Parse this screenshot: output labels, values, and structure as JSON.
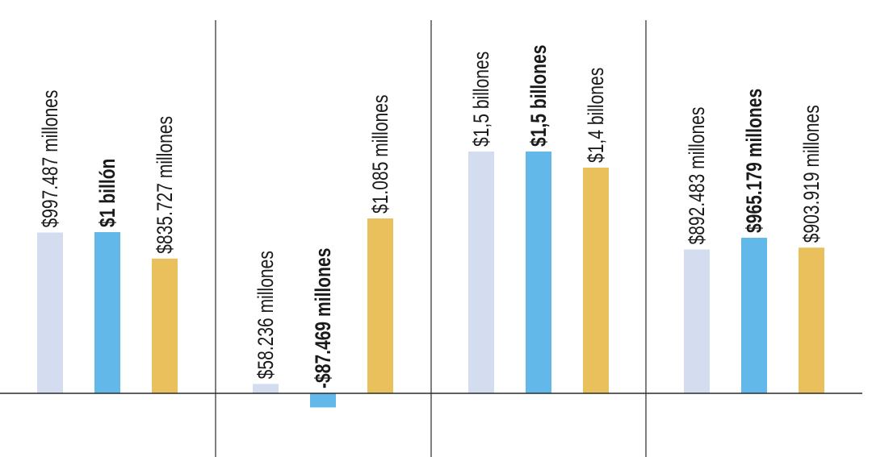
{
  "chart_data": {
    "type": "bar",
    "title": "",
    "xlabel": "",
    "ylabel": "",
    "unit": "millones",
    "ylim": [
      -160,
      1700
    ],
    "grid": false,
    "legend": "none",
    "groups": [
      {
        "bars": [
          {
            "value": 997.487,
            "label": "$997.487 millones",
            "highlight": false
          },
          {
            "value": 1000,
            "label": "$1 billón",
            "highlight": true
          },
          {
            "value": 835.727,
            "label": "$835.727 millones",
            "highlight": false
          }
        ]
      },
      {
        "bars": [
          {
            "value": 58.236,
            "label": "$58.236 millones",
            "highlight": false
          },
          {
            "value": -87.469,
            "label": "-$87.469 millones",
            "highlight": true
          },
          {
            "value": 1085,
            "label": "$1.085 millones",
            "highlight": false
          }
        ]
      },
      {
        "bars": [
          {
            "value": 1500,
            "label": "$1,5 billones",
            "highlight": false
          },
          {
            "value": 1500,
            "label": "$1,5 billones",
            "highlight": true
          },
          {
            "value": 1400,
            "label": "$1,4 billones",
            "highlight": false
          }
        ]
      },
      {
        "bars": [
          {
            "value": 892.483,
            "label": "$892.483 millones",
            "highlight": false
          },
          {
            "value": 965.179,
            "label": "$965.179 millones",
            "highlight": true
          },
          {
            "value": 903.919,
            "label": "$903.919 millones",
            "highlight": false
          }
        ]
      }
    ],
    "colors": [
      "#d4ddf0",
      "#62b8e8",
      "#eac05c"
    ]
  }
}
